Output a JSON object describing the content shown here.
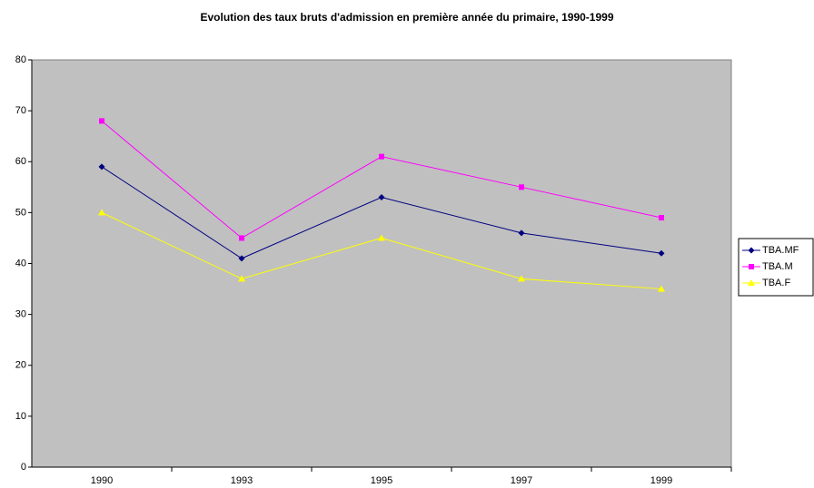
{
  "chart_data": {
    "type": "line",
    "title": "Evolution des taux bruts d'admission en première année du primaire, 1990-1999",
    "categories": [
      "1990",
      "1993",
      "1995",
      "1997",
      "1999"
    ],
    "series": [
      {
        "name": "TBA.MF",
        "color": "#000080",
        "marker": "diamond",
        "values": [
          59,
          41,
          53,
          46,
          42
        ]
      },
      {
        "name": "TBA.M",
        "color": "#ff00ff",
        "marker": "square",
        "values": [
          68,
          45,
          61,
          55,
          49
        ]
      },
      {
        "name": "TBA.F",
        "color": "#ffff00",
        "marker": "triangle",
        "values": [
          50,
          37,
          45,
          37,
          35
        ]
      }
    ],
    "ylim": [
      0,
      80
    ],
    "yticks": [
      0,
      10,
      20,
      30,
      40,
      50,
      60,
      70,
      80
    ],
    "grid": false,
    "legend": "right",
    "plot_background": "#c0c0c0"
  }
}
